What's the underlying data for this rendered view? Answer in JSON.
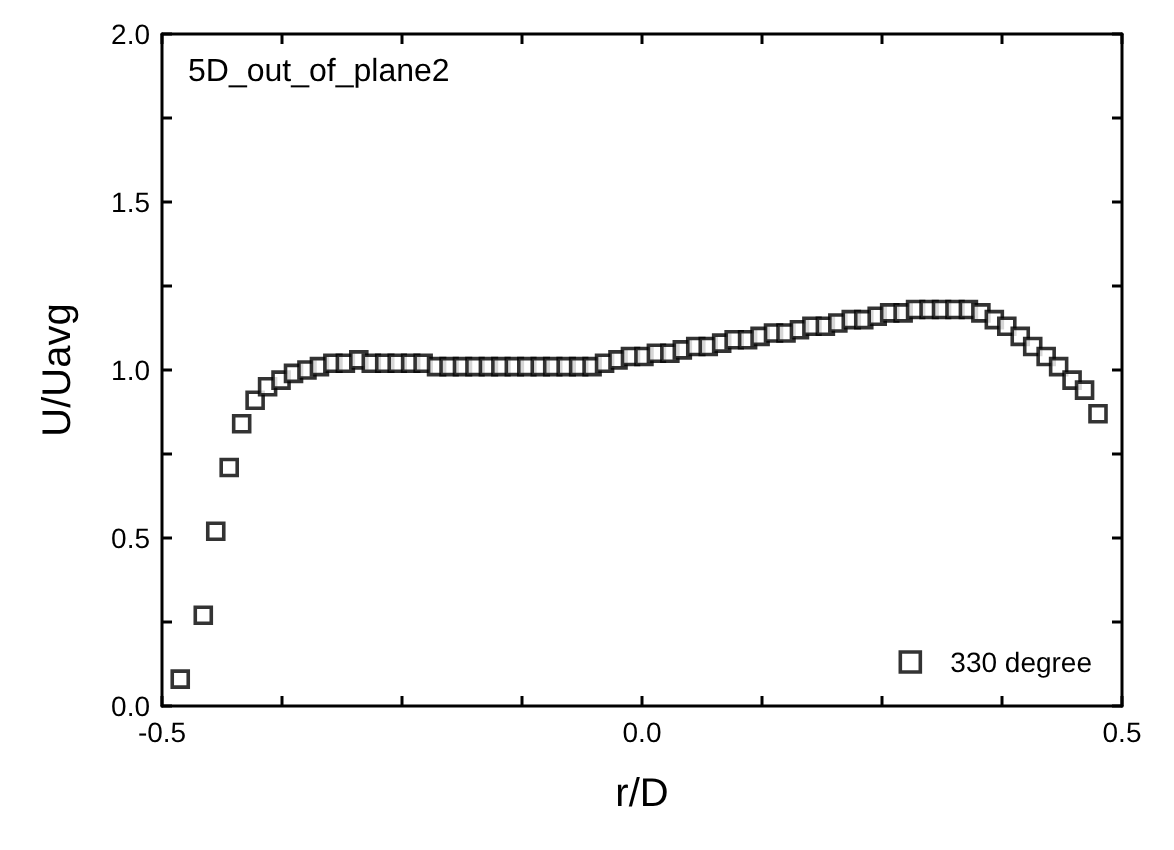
{
  "chart_data": {
    "type": "scatter",
    "xlabel": "r/D",
    "ylabel": "U/Uavg",
    "annotations": [
      "5D_out_of_plane2"
    ],
    "x": [
      -0.481,
      -0.457,
      -0.444,
      -0.43,
      -0.417,
      -0.403,
      -0.39,
      -0.376,
      -0.363,
      -0.349,
      -0.336,
      -0.322,
      -0.309,
      -0.295,
      -0.282,
      -0.268,
      -0.255,
      -0.241,
      -0.228,
      -0.214,
      -0.201,
      -0.187,
      -0.174,
      -0.16,
      -0.147,
      -0.133,
      -0.12,
      -0.106,
      -0.093,
      -0.079,
      -0.066,
      -0.052,
      -0.039,
      -0.025,
      -0.012,
      0.002,
      0.015,
      0.029,
      0.042,
      0.056,
      0.069,
      0.083,
      0.096,
      0.11,
      0.123,
      0.137,
      0.15,
      0.164,
      0.177,
      0.191,
      0.204,
      0.218,
      0.231,
      0.245,
      0.258,
      0.272,
      0.285,
      0.299,
      0.312,
      0.326,
      0.34,
      0.353,
      0.367,
      0.38,
      0.394,
      0.407,
      0.421,
      0.434,
      0.448,
      0.461,
      0.475
    ],
    "series": [
      {
        "name": "330 degree",
        "color": "#000000",
        "values": [
          0.08,
          0.27,
          0.52,
          0.71,
          0.84,
          0.91,
          0.95,
          0.97,
          0.99,
          1.0,
          1.01,
          1.02,
          1.02,
          1.03,
          1.02,
          1.02,
          1.02,
          1.02,
          1.02,
          1.01,
          1.01,
          1.01,
          1.01,
          1.01,
          1.01,
          1.01,
          1.01,
          1.01,
          1.01,
          1.01,
          1.01,
          1.01,
          1.02,
          1.03,
          1.04,
          1.04,
          1.05,
          1.05,
          1.06,
          1.07,
          1.07,
          1.08,
          1.09,
          1.09,
          1.1,
          1.11,
          1.11,
          1.12,
          1.13,
          1.13,
          1.14,
          1.15,
          1.15,
          1.16,
          1.17,
          1.17,
          1.18,
          1.18,
          1.18,
          1.18,
          1.18,
          1.17,
          1.15,
          1.13,
          1.1,
          1.07,
          1.04,
          1.01,
          0.97,
          0.94,
          0.87
        ]
      }
    ],
    "xlim": [
      -0.5,
      0.5
    ],
    "xticks": [
      {
        "value": -0.5,
        "label": "-0.5"
      },
      {
        "value": -0.375,
        "label": null
      },
      {
        "value": -0.25,
        "label": null
      },
      {
        "value": -0.125,
        "label": null
      },
      {
        "value": 0,
        "label": "0.0"
      },
      {
        "value": 0.125,
        "label": null
      },
      {
        "value": 0.25,
        "label": null
      },
      {
        "value": 0.375,
        "label": null
      },
      {
        "value": 0.5,
        "label": "0.5"
      }
    ],
    "ylim": [
      0,
      2
    ],
    "yticks": [
      {
        "value": 0,
        "label": "0.0"
      },
      {
        "value": 0.25,
        "label": null
      },
      {
        "value": 0.5,
        "label": "0.5"
      },
      {
        "value": 0.75,
        "label": null
      },
      {
        "value": 1,
        "label": "1.0"
      },
      {
        "value": 1.25,
        "label": null
      },
      {
        "value": 1.5,
        "label": "1.5"
      },
      {
        "value": 1.75,
        "label": null
      },
      {
        "value": 2,
        "label": "2.0"
      }
    ],
    "marker": "square",
    "grid": false,
    "legend": "bottom right"
  }
}
